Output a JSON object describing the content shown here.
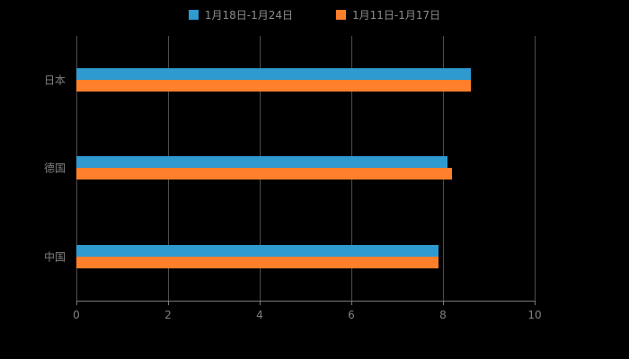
{
  "chart_data": {
    "type": "bar",
    "orientation": "horizontal",
    "title": "",
    "categories": [
      "日本",
      "德国",
      "中国"
    ],
    "series": [
      {
        "name": "1月18日-1月24日",
        "color": "#2e9ad0",
        "values": [
          8.6,
          8.1,
          7.9
        ]
      },
      {
        "name": "1月11日-1月17日",
        "color": "#ff7f2a",
        "values": [
          8.6,
          8.2,
          7.9
        ]
      }
    ],
    "xlim": [
      0,
      10
    ],
    "x_ticks": [
      0,
      2,
      4,
      6,
      8,
      10
    ],
    "grid": true,
    "legend_position": "top",
    "background_color": "#000000",
    "text_color": "#808080"
  }
}
